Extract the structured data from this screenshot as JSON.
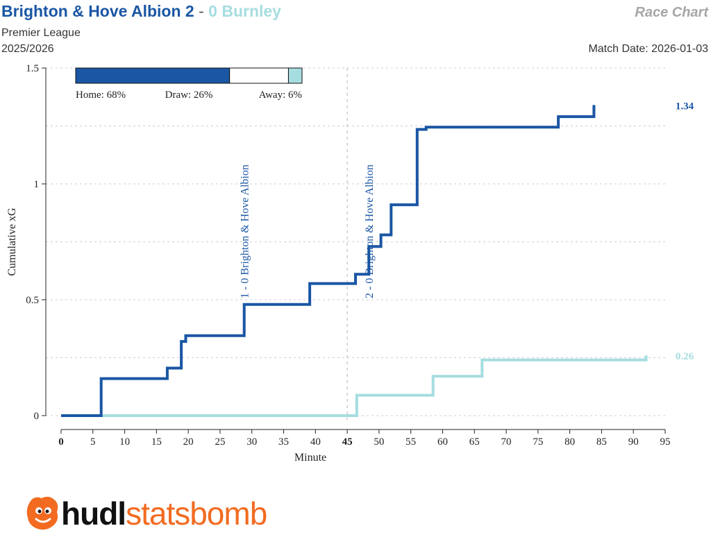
{
  "header": {
    "home_name": "Brighton & Hove Albion",
    "home_score": "2",
    "separator": "-",
    "away_score": "0",
    "away_name": "Burnley",
    "chart_label": "Race Chart",
    "competition": "Premier League",
    "season": "2025/2026",
    "match_date": "Match Date: 2026-01-03"
  },
  "colors": {
    "home": "#1a56a4",
    "away": "#a6dde0",
    "grid": "#cccccc",
    "halftime": "#b0b0b0"
  },
  "probability_bar": {
    "home_pct": 68,
    "draw_pct": 26,
    "away_pct": 6,
    "home_label": "Home: 68%",
    "draw_label": "Draw: 26%",
    "away_label": "Away: 6%"
  },
  "chart_data": {
    "type": "line",
    "step": true,
    "xlabel": "Minute",
    "ylabel": "Cumulative xG",
    "xlim": [
      0,
      95
    ],
    "ylim": [
      0,
      1.5
    ],
    "xticks": [
      0,
      5,
      10,
      15,
      20,
      25,
      30,
      35,
      40,
      45,
      50,
      55,
      60,
      65,
      70,
      75,
      80,
      85,
      90,
      95
    ],
    "yticks": [
      0,
      0.5,
      1,
      1.5
    ],
    "ytick_labels": [
      "0",
      "0.5",
      "1",
      "1.5"
    ],
    "gridlines": [
      0.25,
      0.75,
      1.25
    ],
    "halftime_minute": 45,
    "series": [
      {
        "name": "Brighton & Hove Albion",
        "team": "home",
        "final_label": "1.34",
        "points": [
          [
            0,
            0
          ],
          [
            6.3,
            0
          ],
          [
            6.3,
            0.16
          ],
          [
            16.7,
            0.16
          ],
          [
            16.7,
            0.205
          ],
          [
            18.9,
            0.205
          ],
          [
            18.9,
            0.32
          ],
          [
            19.6,
            0.32
          ],
          [
            19.6,
            0.345
          ],
          [
            28.8,
            0.345
          ],
          [
            28.8,
            0.48
          ],
          [
            39.1,
            0.48
          ],
          [
            39.1,
            0.57
          ],
          [
            46.3,
            0.57
          ],
          [
            46.3,
            0.61
          ],
          [
            48.4,
            0.61
          ],
          [
            48.4,
            0.73
          ],
          [
            50.3,
            0.73
          ],
          [
            50.3,
            0.78
          ],
          [
            51.9,
            0.78
          ],
          [
            51.9,
            0.91
          ],
          [
            56.0,
            0.91
          ],
          [
            56.0,
            1.235
          ],
          [
            57.4,
            1.235
          ],
          [
            57.4,
            1.245
          ],
          [
            78.2,
            1.245
          ],
          [
            78.2,
            1.29
          ],
          [
            83.8,
            1.29
          ],
          [
            83.8,
            1.34
          ]
        ]
      },
      {
        "name": "Burnley",
        "team": "away",
        "final_label": "0.26",
        "points": [
          [
            0,
            0
          ],
          [
            46.5,
            0
          ],
          [
            46.5,
            0.088
          ],
          [
            58.5,
            0.088
          ],
          [
            58.5,
            0.17
          ],
          [
            66.2,
            0.17
          ],
          [
            66.2,
            0.24
          ],
          [
            92,
            0.24
          ],
          [
            92,
            0.26
          ]
        ]
      }
    ],
    "goals": [
      {
        "minute": 28.8,
        "label": "1 - 0 Brighton & Hove Albion"
      },
      {
        "minute": 48.4,
        "label": "2 - 0 Brighton & Hove Albion"
      }
    ]
  },
  "logo": {
    "part1": "hudl",
    "part2": "statsbomb"
  }
}
